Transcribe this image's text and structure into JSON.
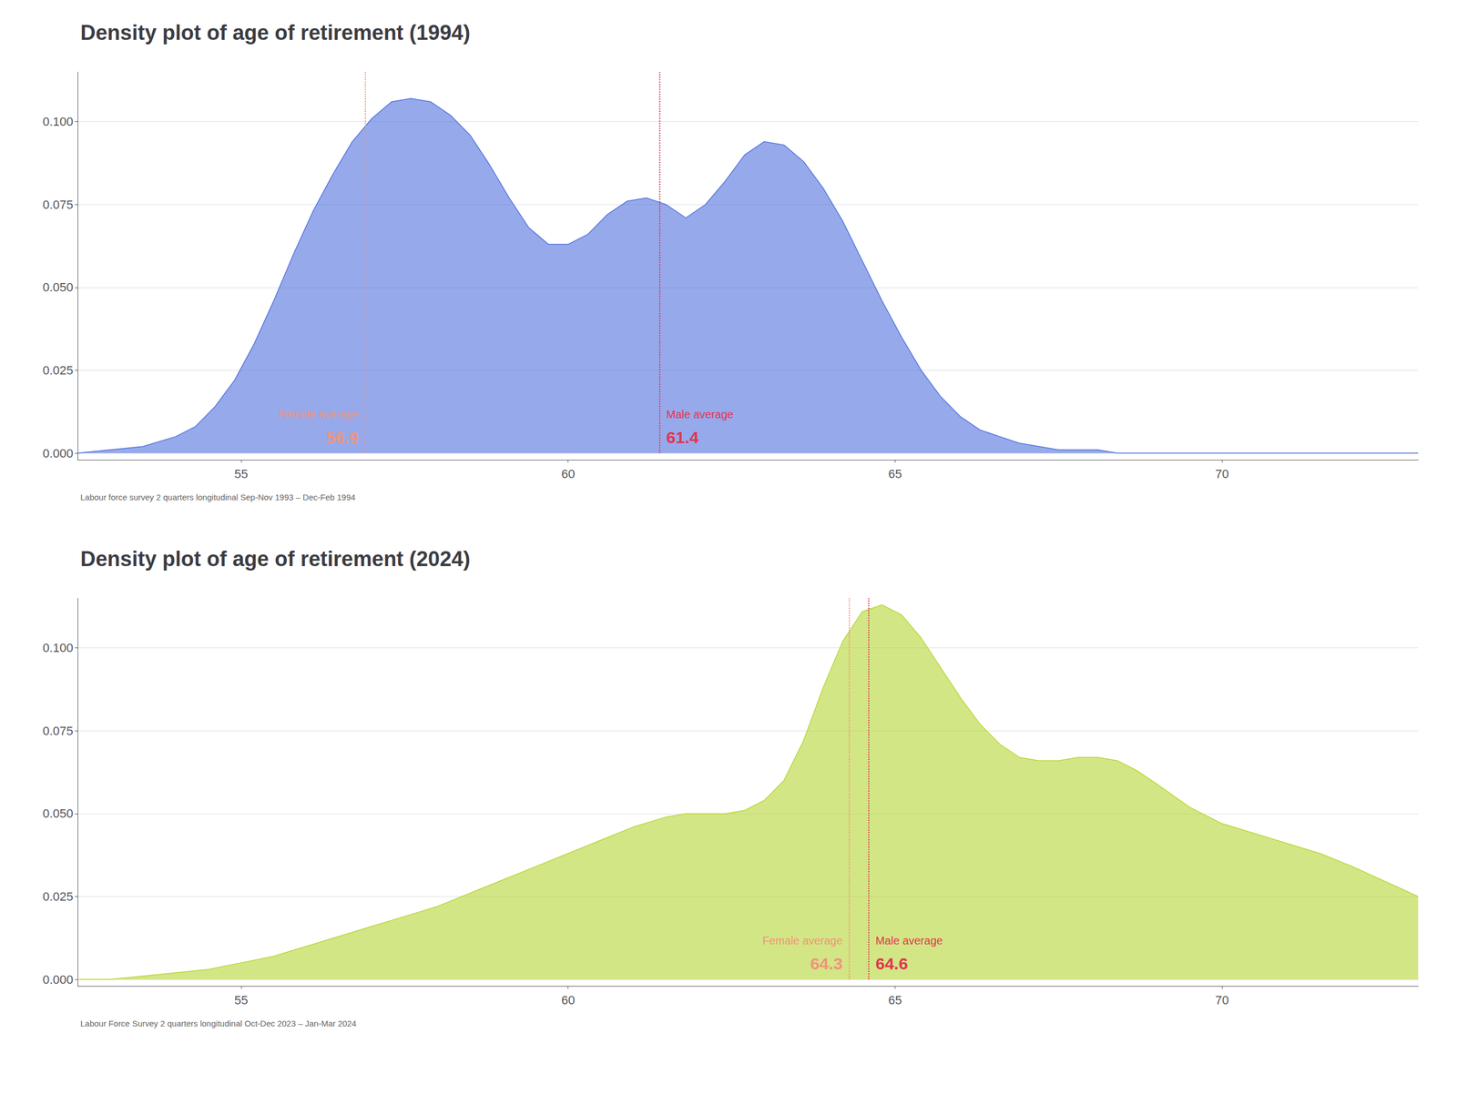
{
  "chart_data": [
    {
      "type": "area",
      "title": "Density plot of age of retirement (1994)",
      "source": "Labour force survey 2 quarters longitudinal Sep-Nov 1993 – Dec-Feb 1994",
      "x": [
        52.5,
        53.0,
        53.5,
        54.0,
        54.3,
        54.6,
        54.9,
        55.2,
        55.5,
        55.8,
        56.1,
        56.4,
        56.7,
        57.0,
        57.3,
        57.6,
        57.9,
        58.2,
        58.5,
        58.8,
        59.1,
        59.4,
        59.7,
        60.0,
        60.3,
        60.6,
        60.9,
        61.2,
        61.5,
        61.8,
        62.1,
        62.4,
        62.7,
        63.0,
        63.3,
        63.6,
        63.9,
        64.2,
        64.5,
        64.8,
        65.1,
        65.4,
        65.7,
        66.0,
        66.3,
        66.6,
        66.9,
        67.2,
        67.5,
        67.8,
        68.1,
        68.4,
        68.7,
        69.0,
        69.5,
        70.0,
        70.5,
        71.0,
        72.0,
        73.0
      ],
      "values": [
        0.0,
        0.001,
        0.002,
        0.005,
        0.008,
        0.014,
        0.022,
        0.033,
        0.046,
        0.06,
        0.073,
        0.084,
        0.094,
        0.101,
        0.106,
        0.107,
        0.106,
        0.102,
        0.096,
        0.087,
        0.077,
        0.068,
        0.063,
        0.063,
        0.066,
        0.072,
        0.076,
        0.077,
        0.075,
        0.071,
        0.075,
        0.082,
        0.09,
        0.094,
        0.093,
        0.088,
        0.08,
        0.07,
        0.058,
        0.046,
        0.035,
        0.025,
        0.017,
        0.011,
        0.007,
        0.005,
        0.003,
        0.002,
        0.001,
        0.001,
        0.001,
        0.0,
        0.0,
        0.0,
        0.0,
        0.0,
        0.0,
        0.0,
        0.0,
        0.0
      ],
      "vlines": [
        {
          "name": "Female average",
          "x": 56.9,
          "label": "56.9",
          "color": "#f0947a",
          "line_style": "dotted",
          "side": "left"
        },
        {
          "name": "Male average",
          "x": 61.4,
          "label": "61.4",
          "color": "#e03550",
          "line_style": "dotted",
          "side": "right"
        }
      ],
      "xlim": [
        52.5,
        73
      ],
      "ylim": [
        -0.002,
        0.115
      ],
      "xticks": [
        55,
        60,
        65,
        70
      ],
      "yticks": [
        {
          "value": 0.0,
          "label": "0.000"
        },
        {
          "value": 0.025,
          "label": "0.025"
        },
        {
          "value": 0.05,
          "label": "0.050"
        },
        {
          "value": 0.075,
          "label": "0.075"
        },
        {
          "value": 0.1,
          "label": "0.100"
        }
      ],
      "grid": true
    },
    {
      "type": "area",
      "title": "Density plot of age of retirement (2024)",
      "source": "Labour Force Survey 2 quarters longitudinal Oct-Dec 2023 – Jan-Mar 2024",
      "x": [
        52.5,
        53.0,
        53.5,
        54.0,
        54.5,
        55.0,
        55.5,
        56.0,
        56.5,
        57.0,
        57.5,
        58.0,
        58.5,
        59.0,
        59.5,
        60.0,
        60.5,
        61.0,
        61.5,
        61.8,
        62.1,
        62.4,
        62.7,
        63.0,
        63.3,
        63.6,
        63.9,
        64.2,
        64.5,
        64.8,
        65.1,
        65.4,
        65.7,
        66.0,
        66.3,
        66.6,
        66.9,
        67.2,
        67.5,
        67.8,
        68.1,
        68.4,
        68.7,
        69.0,
        69.5,
        70.0,
        70.5,
        71.0,
        71.5,
        72.0,
        73.0
      ],
      "values": [
        0.0,
        0.0,
        0.001,
        0.002,
        0.003,
        0.005,
        0.007,
        0.01,
        0.013,
        0.016,
        0.019,
        0.022,
        0.026,
        0.03,
        0.034,
        0.038,
        0.042,
        0.046,
        0.049,
        0.05,
        0.05,
        0.05,
        0.051,
        0.054,
        0.06,
        0.072,
        0.088,
        0.102,
        0.111,
        0.113,
        0.11,
        0.103,
        0.094,
        0.085,
        0.077,
        0.071,
        0.067,
        0.066,
        0.066,
        0.067,
        0.067,
        0.066,
        0.063,
        0.059,
        0.052,
        0.047,
        0.044,
        0.041,
        0.038,
        0.034,
        0.025
      ],
      "vlines": [
        {
          "name": "Female average",
          "x": 64.3,
          "label": "64.3",
          "color": "#f0947a",
          "line_style": "dotted",
          "side": "left"
        },
        {
          "name": "Male average",
          "x": 64.6,
          "label": "64.6",
          "color": "#e03550",
          "line_style": "dotted",
          "side": "right"
        }
      ],
      "xlim": [
        52.5,
        73
      ],
      "ylim": [
        -0.002,
        0.115
      ],
      "xticks": [
        55,
        60,
        65,
        70
      ],
      "yticks": [
        {
          "value": 0.0,
          "label": "0.000"
        },
        {
          "value": 0.025,
          "label": "0.025"
        },
        {
          "value": 0.05,
          "label": "0.050"
        },
        {
          "value": 0.075,
          "label": "0.075"
        },
        {
          "value": 0.1,
          "label": "0.100"
        }
      ],
      "grid": true
    }
  ]
}
